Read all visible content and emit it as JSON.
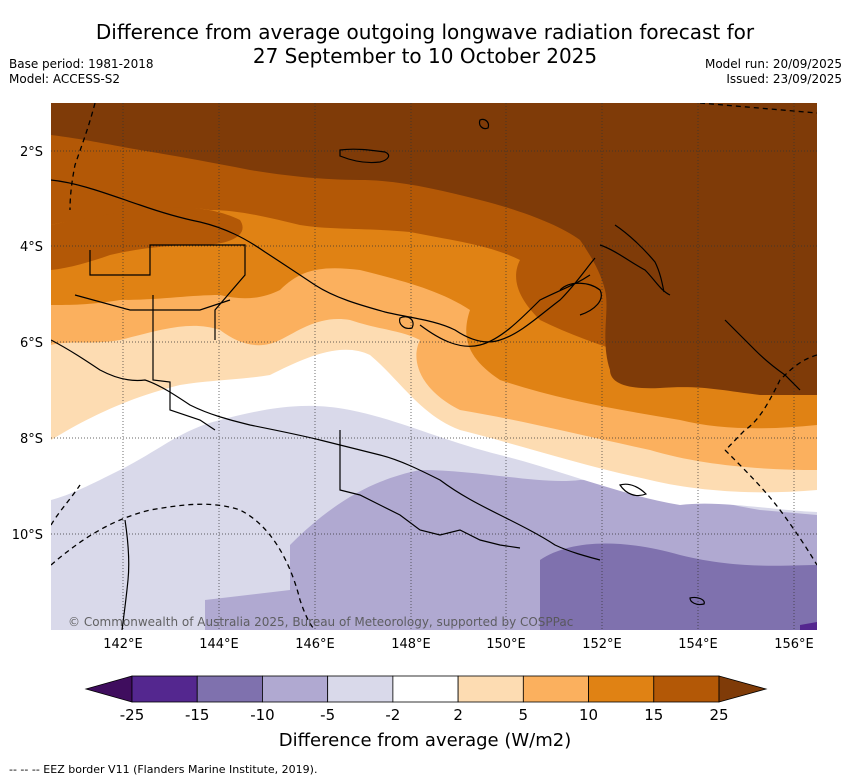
{
  "title": {
    "line1": "Difference from average outgoing longwave radiation forecast for",
    "line2": "27 September to 10 October 2025"
  },
  "meta_left": {
    "base_period": "Base period: 1981-2018",
    "model": "Model: ACCESS-S2"
  },
  "meta_right": {
    "model_run": "Model run: 20/09/2025",
    "issued": "Issued: 23/09/2025"
  },
  "map": {
    "lon_range": [
      140.5,
      156.5
    ],
    "lat_range": [
      -12.0,
      -1.0
    ],
    "lat_ticks": [
      "2°S",
      "4°S",
      "6°S",
      "8°S",
      "10°S"
    ],
    "lon_ticks": [
      "142°E",
      "144°E",
      "146°E",
      "148°E",
      "150°E",
      "152°E",
      "154°E",
      "156°E"
    ],
    "copyright": "© Commonwealth of Australia 2025, Bureau of Meteorology, supported by COSPPac"
  },
  "colorbar": {
    "labels": [
      "-25",
      "-15",
      "-10",
      "-5",
      "-2",
      "2",
      "5",
      "10",
      "15",
      "25"
    ],
    "colors": [
      "#3f0d5e",
      "#54278f",
      "#7f71ae",
      "#b0a9d1",
      "#d9d9ea",
      "#ffffff",
      "#fddcb2",
      "#fbb05e",
      "#e08214",
      "#b35806",
      "#7f3b08"
    ],
    "title": "Difference from average (W/m2)"
  },
  "footnote": "--  --  -- EEZ border V11 (Flanders Marine Institute, 2019)."
}
